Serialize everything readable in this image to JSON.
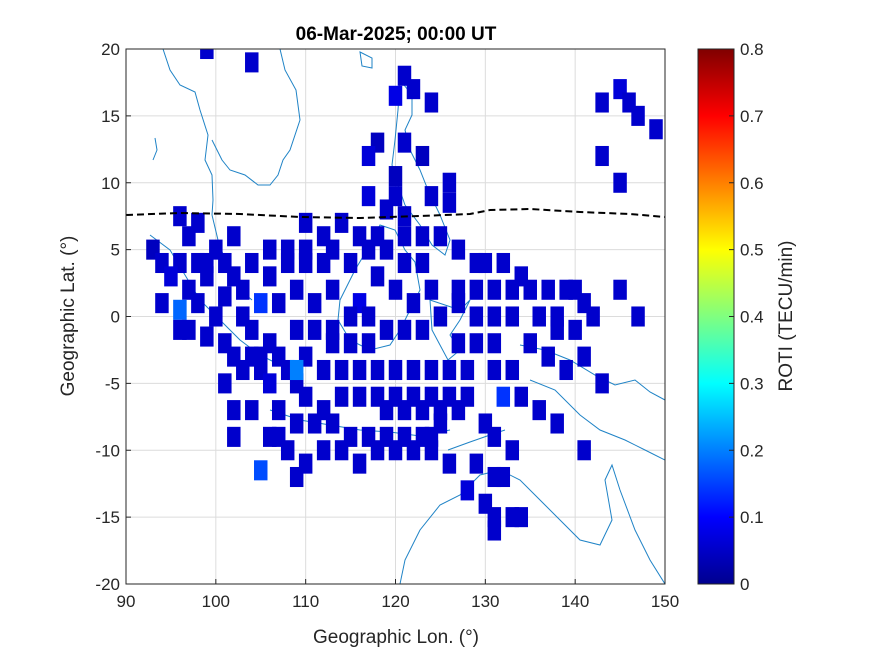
{
  "chart_data": {
    "type": "heatmap",
    "title": "06-Mar-2025; 00:00 UT",
    "xlabel": "Geographic Lon. (°)",
    "ylabel": "Geographic Lat. (°)",
    "xlim": [
      90,
      150
    ],
    "ylim": [
      -20,
      20
    ],
    "xticks": [
      "90",
      "100",
      "110",
      "120",
      "130",
      "140",
      "150"
    ],
    "yticks": [
      "20",
      "15",
      "10",
      "5",
      "0",
      "-5",
      "-10",
      "-15",
      "-20"
    ],
    "grid": true,
    "colorbar": {
      "label": "ROTI (TECU/min)",
      "range": [
        0,
        0.8
      ],
      "ticks": [
        "0",
        "0.1",
        "0.2",
        "0.3",
        "0.4",
        "0.5",
        "0.6",
        "0.7",
        "0.8"
      ],
      "colormap": "jet"
    },
    "cell_size_deg": [
      1.5,
      1.5
    ],
    "dominant_value": 0.05,
    "points": [
      [
        99,
        20,
        0.06
      ],
      [
        104,
        19,
        0.06
      ],
      [
        121,
        18,
        0.06
      ],
      [
        120,
        16.5,
        0.08
      ],
      [
        122,
        17,
        0.06
      ],
      [
        124,
        16,
        0.06
      ],
      [
        118,
        13,
        0.05
      ],
      [
        121,
        13,
        0.06
      ],
      [
        117,
        12,
        0.07
      ],
      [
        123,
        12,
        0.05
      ],
      [
        120,
        10.5,
        0.05
      ],
      [
        126,
        10,
        0.06
      ],
      [
        117,
        9,
        0.07
      ],
      [
        120,
        9,
        0.06
      ],
      [
        124,
        9,
        0.06
      ],
      [
        126,
        8.5,
        0.06
      ],
      [
        119,
        8,
        0.06
      ],
      [
        121,
        7.5,
        0.06
      ],
      [
        143,
        16,
        0.06
      ],
      [
        145,
        17,
        0.07
      ],
      [
        146,
        16,
        0.06
      ],
      [
        147,
        15,
        0.06
      ],
      [
        149,
        14,
        0.06
      ],
      [
        143,
        12,
        0.06
      ],
      [
        145,
        10,
        0.06
      ],
      [
        145,
        2,
        0.06
      ],
      [
        147,
        0,
        0.06
      ],
      [
        96,
        7.5,
        0.06
      ],
      [
        97,
        6,
        0.06
      ],
      [
        98,
        7,
        0.06
      ],
      [
        93,
        5,
        0.05
      ],
      [
        94,
        4,
        0.06
      ],
      [
        96,
        4,
        0.06
      ],
      [
        98,
        4,
        0.06
      ],
      [
        100,
        5,
        0.06
      ],
      [
        95,
        3,
        0.07
      ],
      [
        97,
        2,
        0.06
      ],
      [
        99,
        3,
        0.06
      ],
      [
        101,
        4,
        0.06
      ],
      [
        102,
        3,
        0.06
      ],
      [
        94,
        1,
        0.06
      ],
      [
        96,
        0.5,
        0.18
      ],
      [
        98,
        1,
        0.06
      ],
      [
        100,
        0,
        0.06
      ],
      [
        101,
        1.5,
        0.06
      ],
      [
        103,
        2,
        0.06
      ],
      [
        97,
        -1,
        0.06
      ],
      [
        99,
        -1.5,
        0.06
      ],
      [
        101,
        -2,
        0.06
      ],
      [
        103,
        0,
        0.06
      ],
      [
        104,
        -1,
        0.06
      ],
      [
        102,
        -3,
        0.06
      ],
      [
        104,
        -3,
        0.06
      ],
      [
        105,
        -4,
        0.06
      ],
      [
        106,
        -2,
        0.06
      ],
      [
        107,
        -3,
        0.06
      ],
      [
        106,
        -5,
        0.07
      ],
      [
        108,
        -4,
        0.06
      ],
      [
        109,
        -5,
        0.06
      ],
      [
        110,
        -6,
        0.06
      ],
      [
        112,
        -7,
        0.06
      ],
      [
        107,
        -7,
        0.06
      ],
      [
        109,
        -8,
        0.06
      ],
      [
        111,
        -8,
        0.06
      ],
      [
        113,
        -8,
        0.06
      ],
      [
        115,
        -9,
        0.06
      ],
      [
        117,
        -9,
        0.06
      ],
      [
        119,
        -9,
        0.06
      ],
      [
        121,
        -9,
        0.06
      ],
      [
        123,
        -9,
        0.06
      ],
      [
        125,
        -8,
        0.06
      ],
      [
        107,
        -9,
        0.06
      ],
      [
        108,
        -10,
        0.06
      ],
      [
        110,
        -11,
        0.06
      ],
      [
        112,
        -10,
        0.06
      ],
      [
        114,
        -10,
        0.06
      ],
      [
        116,
        -11,
        0.06
      ],
      [
        118,
        -10,
        0.06
      ],
      [
        120,
        -10,
        0.06
      ],
      [
        122,
        -10,
        0.06
      ],
      [
        124,
        -10,
        0.06
      ],
      [
        124,
        -9,
        0.06
      ],
      [
        102,
        -9,
        0.06
      ],
      [
        105,
        -11.5,
        0.16
      ],
      [
        109,
        -12,
        0.06
      ],
      [
        126,
        -11,
        0.06
      ],
      [
        128,
        -13,
        0.07
      ],
      [
        99,
        4,
        0.06
      ],
      [
        102,
        6,
        0.06
      ],
      [
        104,
        4,
        0.06
      ],
      [
        106,
        3,
        0.06
      ],
      [
        105,
        1,
        0.14
      ],
      [
        107,
        1,
        0.06
      ],
      [
        109,
        2,
        0.06
      ],
      [
        111,
        1,
        0.06
      ],
      [
        113,
        2,
        0.06
      ],
      [
        108,
        4,
        0.06
      ],
      [
        110,
        4,
        0.06
      ],
      [
        110,
        5,
        0.06
      ],
      [
        112,
        4,
        0.06
      ],
      [
        113,
        5,
        0.06
      ],
      [
        115,
        4,
        0.06
      ],
      [
        116,
        1,
        0.08
      ],
      [
        117,
        0,
        0.06
      ],
      [
        115,
        0,
        0.06
      ],
      [
        118,
        3,
        0.06
      ],
      [
        117,
        5,
        0.06
      ],
      [
        119,
        5,
        0.06
      ],
      [
        121,
        4,
        0.06
      ],
      [
        123,
        4,
        0.06
      ],
      [
        120,
        2,
        0.06
      ],
      [
        122,
        1,
        0.06
      ],
      [
        124,
        2,
        0.06
      ],
      [
        125,
        0,
        0.06
      ],
      [
        123,
        -1,
        0.06
      ],
      [
        121,
        -1,
        0.06
      ],
      [
        119,
        -1,
        0.06
      ],
      [
        117,
        -2,
        0.06
      ],
      [
        115,
        -2,
        0.06
      ],
      [
        113,
        -2,
        0.06
      ],
      [
        111,
        -1,
        0.06
      ],
      [
        109,
        -1,
        0.06
      ],
      [
        110,
        -3,
        0.06
      ],
      [
        112,
        -4,
        0.06
      ],
      [
        114,
        -4,
        0.06
      ],
      [
        116,
        -4,
        0.06
      ],
      [
        118,
        -4,
        0.06
      ],
      [
        120,
        -4,
        0.06
      ],
      [
        122,
        -4,
        0.06
      ],
      [
        124,
        -4,
        0.06
      ],
      [
        126,
        -4,
        0.06
      ],
      [
        128,
        -4,
        0.06
      ],
      [
        127,
        -2,
        0.06
      ],
      [
        129,
        -2,
        0.06
      ],
      [
        131,
        -2,
        0.06
      ],
      [
        129,
        0,
        0.06
      ],
      [
        131,
        0,
        0.06
      ],
      [
        133,
        0,
        0.06
      ],
      [
        127,
        1,
        0.06
      ],
      [
        127,
        2,
        0.06
      ],
      [
        129,
        2,
        0.06
      ],
      [
        131,
        2,
        0.06
      ],
      [
        133,
        2,
        0.06
      ],
      [
        135,
        2,
        0.06
      ],
      [
        130,
        4,
        0.06
      ],
      [
        132,
        4,
        0.06
      ],
      [
        134,
        3,
        0.06
      ],
      [
        136,
        0,
        0.06
      ],
      [
        137,
        2,
        0.06
      ],
      [
        139,
        2,
        0.06
      ],
      [
        141,
        1,
        0.06
      ],
      [
        138,
        -1,
        0.06
      ],
      [
        140,
        -1,
        0.06
      ],
      [
        142,
        0,
        0.06
      ],
      [
        135,
        -2,
        0.06
      ],
      [
        137,
        -3,
        0.06
      ],
      [
        139,
        -4,
        0.06
      ],
      [
        141,
        -3,
        0.06
      ],
      [
        143,
        -5,
        0.06
      ],
      [
        133,
        -4,
        0.06
      ],
      [
        131,
        -4,
        0.06
      ],
      [
        134,
        -6,
        0.06
      ],
      [
        136,
        -7,
        0.06
      ],
      [
        138,
        -8,
        0.06
      ],
      [
        132,
        -6,
        0.14
      ],
      [
        130,
        -8,
        0.06
      ],
      [
        131,
        -9,
        0.06
      ],
      [
        133,
        -10,
        0.06
      ],
      [
        141,
        -10,
        0.06
      ],
      [
        126,
        -6,
        0.06
      ],
      [
        128,
        -6,
        0.06
      ],
      [
        124,
        -6,
        0.06
      ],
      [
        122,
        -6,
        0.06
      ],
      [
        120,
        -6,
        0.06
      ],
      [
        118,
        -6,
        0.06
      ],
      [
        116,
        -6,
        0.06
      ],
      [
        114,
        -6,
        0.06
      ],
      [
        113,
        -1,
        0.06
      ],
      [
        109,
        -4,
        0.2
      ],
      [
        105,
        -3,
        0.06
      ],
      [
        103,
        -4,
        0.06
      ],
      [
        101,
        -5,
        0.06
      ],
      [
        102,
        -7,
        0.06
      ],
      [
        104,
        -7,
        0.06
      ],
      [
        106,
        -9,
        0.06
      ],
      [
        96,
        -1,
        0.06
      ],
      [
        119,
        -7,
        0.06
      ],
      [
        121,
        -7,
        0.06
      ],
      [
        123,
        -7,
        0.06
      ],
      [
        125,
        -7,
        0.06
      ],
      [
        127,
        -7,
        0.06
      ],
      [
        129,
        -11,
        0.06
      ],
      [
        131,
        -12,
        0.06
      ],
      [
        132,
        -12,
        0.06
      ],
      [
        130,
        -14,
        0.06
      ],
      [
        131,
        -15,
        0.06
      ],
      [
        133,
        -15,
        0.06
      ],
      [
        134,
        -15,
        0.06
      ],
      [
        131,
        -16,
        0.06
      ],
      [
        138,
        0,
        0.06
      ],
      [
        140,
        2,
        0.06
      ],
      [
        129,
        4,
        0.06
      ],
      [
        127,
        5,
        0.06
      ],
      [
        125,
        6,
        0.06
      ],
      [
        123,
        6,
        0.06
      ],
      [
        121,
        6,
        0.06
      ],
      [
        118,
        6,
        0.06
      ],
      [
        116,
        6,
        0.06
      ],
      [
        114,
        7,
        0.06
      ],
      [
        112,
        6,
        0.06
      ],
      [
        110,
        7,
        0.06
      ],
      [
        108,
        5,
        0.06
      ],
      [
        106,
        5,
        0.06
      ]
    ]
  }
}
